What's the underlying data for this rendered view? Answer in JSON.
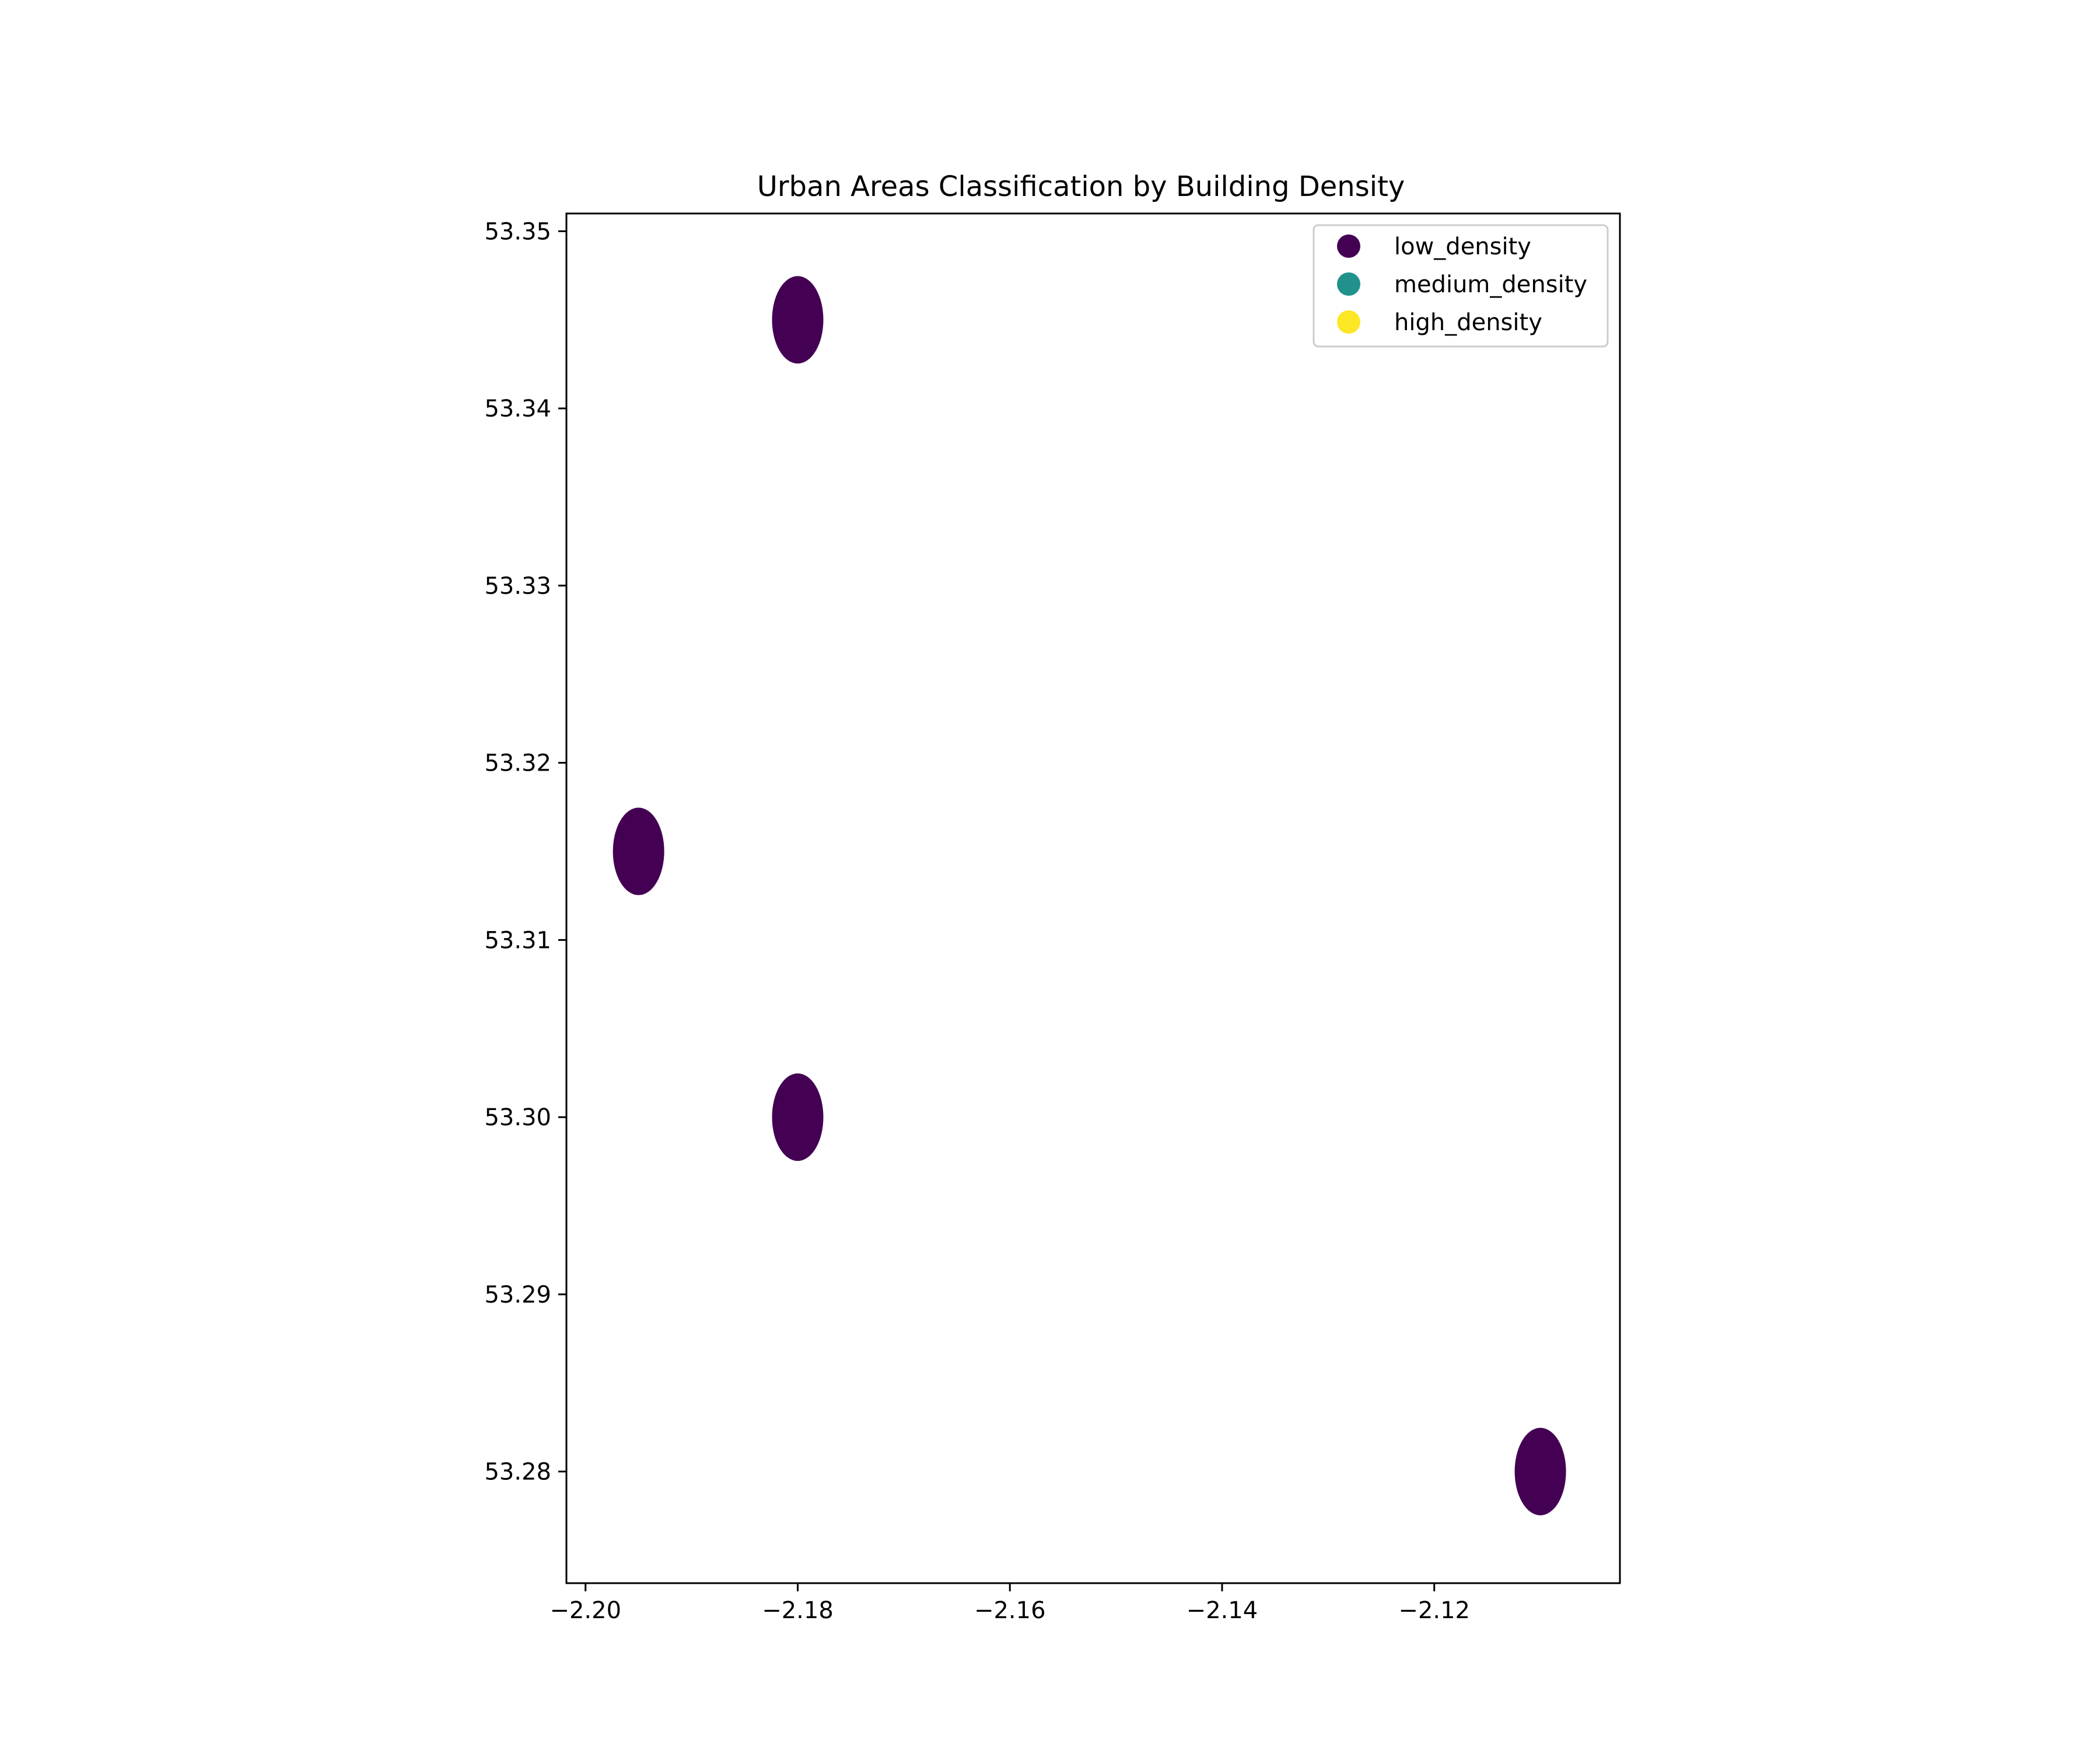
{
  "chart_data": {
    "type": "scatter",
    "title": "Urban Areas Classification by Building Density",
    "xlabel": "",
    "ylabel": "",
    "xlim": [
      -2.2018,
      -2.1025
    ],
    "ylim": [
      53.2737,
      53.351
    ],
    "x_ticks": [
      -2.2,
      -2.18,
      -2.16,
      -2.14,
      -2.12
    ],
    "x_tick_labels": [
      "−2.20",
      "−2.18",
      "−2.16",
      "−2.14",
      "−2.12"
    ],
    "y_ticks": [
      53.28,
      53.29,
      53.3,
      53.31,
      53.32,
      53.33,
      53.34,
      53.35
    ],
    "y_tick_labels": [
      "53.28",
      "53.29",
      "53.30",
      "53.31",
      "53.32",
      "53.33",
      "53.34",
      "53.35"
    ],
    "grid": false,
    "legend_position": "top-right",
    "series": [
      {
        "name": "low_density",
        "color": "#440154",
        "points": [
          {
            "x": -2.18,
            "y": 53.345
          },
          {
            "x": -2.195,
            "y": 53.315
          },
          {
            "x": -2.18,
            "y": 53.3
          },
          {
            "x": -2.11,
            "y": 53.28
          }
        ]
      },
      {
        "name": "medium_density",
        "color": "#21918c",
        "points": []
      },
      {
        "name": "high_density",
        "color": "#fde725",
        "points": []
      }
    ]
  }
}
